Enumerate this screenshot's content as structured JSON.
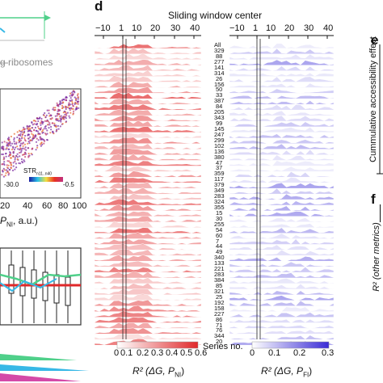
{
  "left_panel": {
    "ribosome_label": "g ribosomes",
    "scatter": {
      "x_ticks": [
        "20",
        "40",
        "60",
        "80",
        "100"
      ],
      "x_label_prefix": "P",
      "x_label_sub": "NI",
      "x_label_suffix": ", a.u.)",
      "colorbar_title": "STR",
      "colorbar_title_sub": "n11..n40",
      "colorbar_min": "-30.0",
      "colorbar_max": "-0.5"
    }
  },
  "panel_d": {
    "letter": "d",
    "top_axis_title": "Sliding window center",
    "top_ticks_left": [
      "−10",
      "1",
      "10",
      "20",
      "30",
      "40"
    ],
    "top_ticks_right": [
      "−10",
      "1",
      "10",
      "20",
      "30",
      "40"
    ],
    "row_labels": [
      "All",
      "329",
      "88",
      "277",
      "141",
      "314",
      "26",
      "156",
      "50",
      "33",
      "387",
      "84",
      "205",
      "343",
      "99",
      "145",
      "247",
      "299",
      "102",
      "136",
      "380",
      "47",
      "37",
      "359",
      "117",
      "379",
      "349",
      "283",
      "324",
      "355",
      "15",
      "30",
      "255",
      "54",
      "60",
      "7",
      "44",
      "49",
      "340",
      "133",
      "221",
      "283",
      "384",
      "85",
      "321",
      "25",
      "192",
      "158",
      "227",
      "86",
      "71",
      "76",
      "344",
      "20"
    ],
    "series_label": "Series no.",
    "red_ticks": [
      "0",
      "0.1",
      "0.2",
      "0.3",
      "0.4",
      "0.5",
      "0.6"
    ],
    "blue_ticks": [
      "0",
      "0.1",
      "0.2",
      "0.3"
    ],
    "red_xlabel": "R² (ΔG, P",
    "red_xlabel_sub": "NI",
    "blue_xlabel": "R² (ΔG, P",
    "blue_xlabel_sub": "FI",
    "close_paren": ")"
  },
  "panel_e": {
    "letter": "e",
    "ylabel": "Cummulative accessibility effect"
  },
  "panel_f": {
    "letter": "f",
    "ylabel": "R² (other metrics)"
  },
  "colors": {
    "red": "#e0282a",
    "blue": "#3a2bd6",
    "green": "#4fd08a",
    "cyan": "#37b8e6",
    "scatter_purple": "#7a2aa0",
    "scatter_orange": "#e86a2a"
  }
}
